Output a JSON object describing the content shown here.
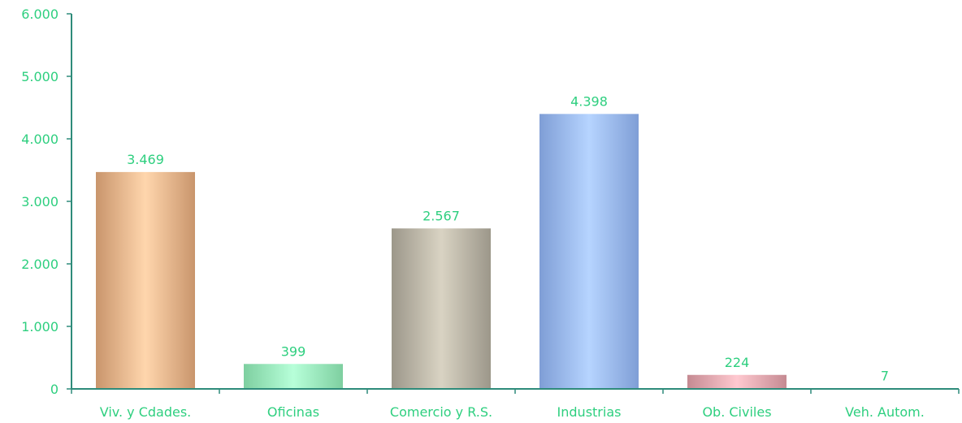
{
  "chart_data": {
    "type": "bar",
    "title": "",
    "xlabel": "",
    "ylabel": "",
    "ylim": [
      0,
      6000
    ],
    "y_ticks": [
      0,
      1000,
      2000,
      3000,
      4000,
      5000,
      6000
    ],
    "y_tick_labels": [
      "0",
      "1.000",
      "2.000",
      "3.000",
      "4.000",
      "5.000",
      "6.000"
    ],
    "grid": false,
    "legend": "none",
    "categories": [
      "Viv. y Cdades.",
      "Oficinas",
      "Comercio  y R.S.",
      "Industrias",
      "Ob. Civiles",
      "Veh. Autom."
    ],
    "values": [
      3469,
      399,
      2567,
      4398,
      224,
      7
    ],
    "value_labels": [
      "3.469",
      "399",
      "2.567",
      "4.398",
      "224",
      "7"
    ],
    "label_color": "#2ecf7f",
    "axis_color": "#2e8b7a",
    "bar_colors": [
      {
        "edge": "#c9956c",
        "center": "#ffd6ad"
      },
      {
        "edge": "#7ecfa0",
        "center": "#b7ffd9"
      },
      {
        "edge": "#9c978a",
        "center": "#d9d3c3"
      },
      {
        "edge": "#7f9ed6",
        "center": "#b6d4ff"
      },
      {
        "edge": "#c58a92",
        "center": "#ffc9d0"
      },
      {
        "edge": "#7fb7a6",
        "center": "#c2efe0"
      }
    ]
  }
}
